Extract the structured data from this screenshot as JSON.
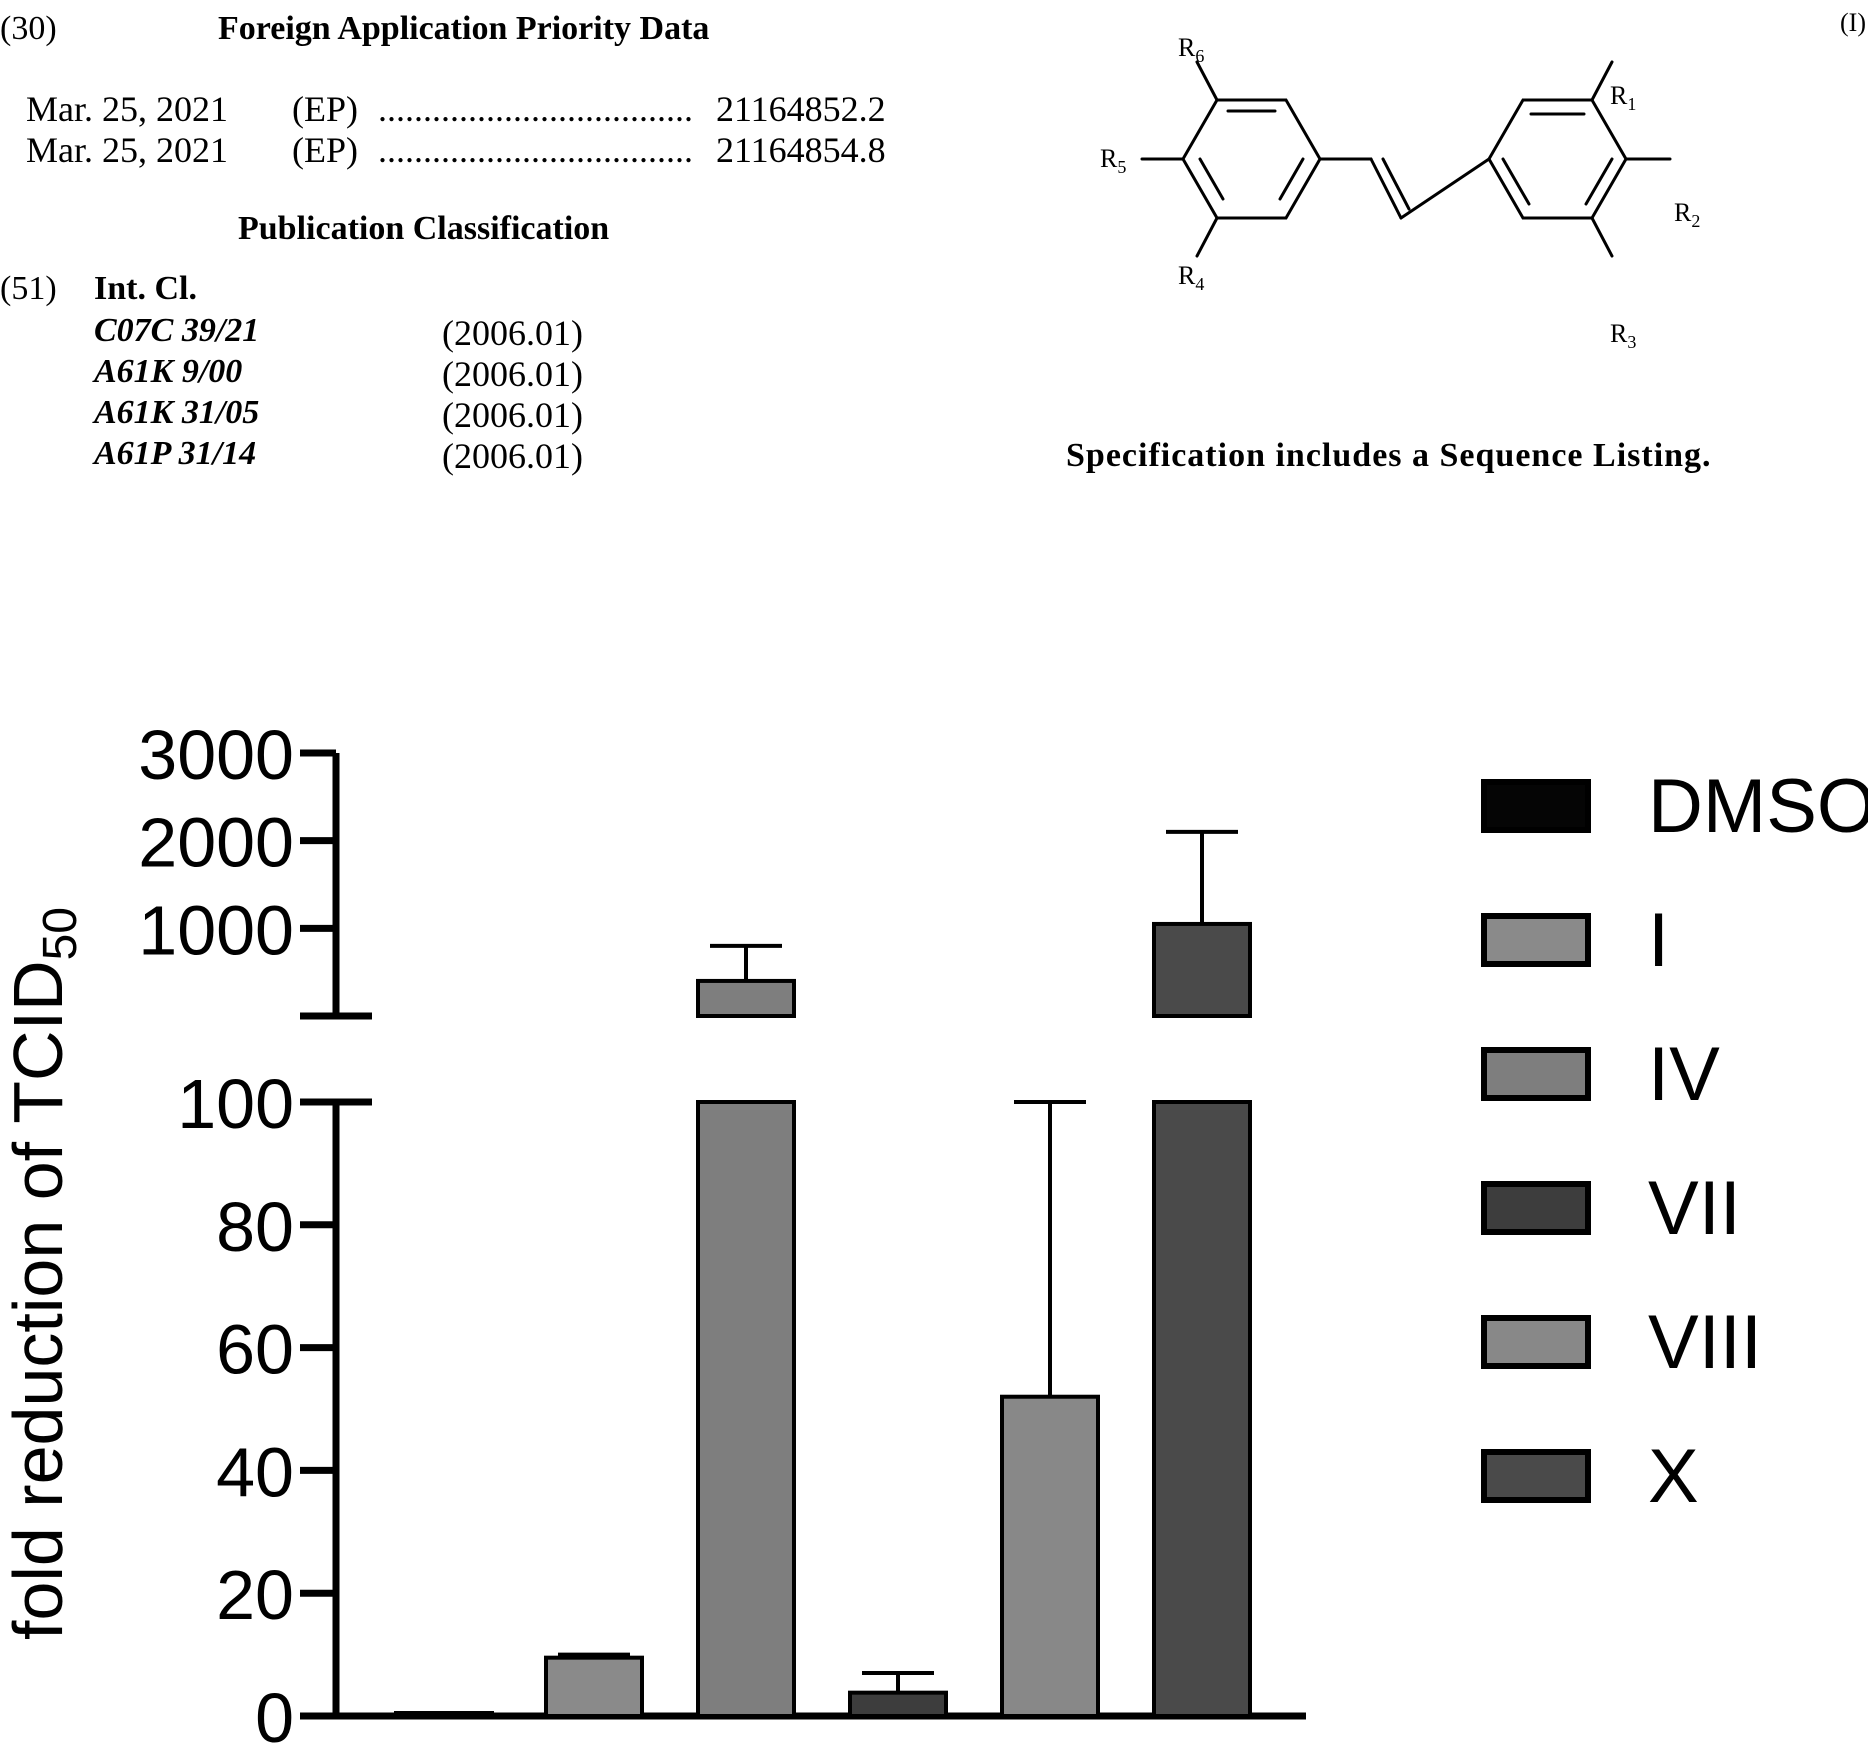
{
  "priority": {
    "code": "(30)",
    "heading": "Foreign Application Priority Data",
    "entries": [
      {
        "date": "Mar. 25, 2021",
        "office": "(EP)",
        "dots": "...................................",
        "number": "21164852.2"
      },
      {
        "date": "Mar. 25, 2021",
        "office": "(EP)",
        "dots": "...................................",
        "number": "21164854.8"
      }
    ]
  },
  "classification": {
    "heading": "Publication Classification",
    "code": "(51)",
    "int_cl": "Int. Cl.",
    "entries": [
      {
        "code": "C07C 39/21",
        "version": "(2006.01)"
      },
      {
        "code": "A61K 9/00",
        "version": "(2006.01)"
      },
      {
        "code": "A61K 31/05",
        "version": "(2006.01)"
      },
      {
        "code": "A61P 31/14",
        "version": "(2006.01)"
      }
    ]
  },
  "formula": {
    "number": "(I)",
    "substituents": [
      "R",
      "R",
      "R",
      "R",
      "R",
      "R"
    ],
    "subscripts": [
      "6",
      "5",
      "4",
      "1",
      "2",
      "3"
    ]
  },
  "sequence_note": "Specification includes a Sequence Listing.",
  "chart_data": {
    "type": "bar",
    "ylabel_main": "fold reduction of TCID",
    "ylabel_sub": "50",
    "y_axis_segments": [
      {
        "ylim": [
          0,
          100
        ],
        "ticks": [
          "0",
          "20",
          "40",
          "60",
          "80",
          "100"
        ]
      },
      {
        "ylim": [
          100,
          3000
        ],
        "ticks": [
          "1000",
          "2000",
          "3000"
        ]
      }
    ],
    "categories": [
      "DMSO",
      "I",
      "IV",
      "VII",
      "VIII",
      "X"
    ],
    "values": [
      0,
      9.5,
      400,
      3.8,
      52,
      1050
    ],
    "error_upper": [
      0,
      10,
      800,
      7,
      100,
      2100
    ],
    "colors": [
      "#050505",
      "#8a8a8a",
      "#7e7e7e",
      "#3d3d3d",
      "#888888",
      "#4a4a4a"
    ],
    "legend": {
      "placement": "right",
      "entries": [
        "DMSO",
        "I",
        "IV",
        "VII",
        "VIII",
        "X"
      ]
    }
  }
}
